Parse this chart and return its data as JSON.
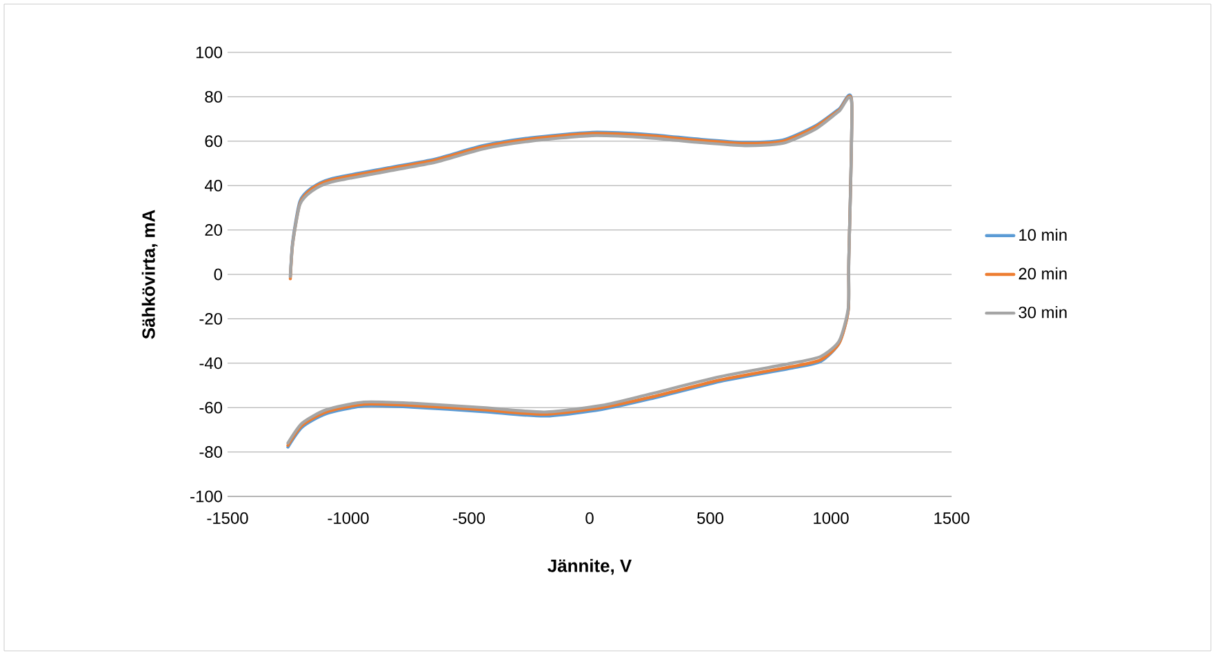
{
  "chart_data": {
    "type": "line",
    "xlabel": "Jännite, V",
    "ylabel": "Sähkövirta, mA",
    "x": [
      -1240,
      -1230,
      -1200,
      -1151,
      -1073,
      -836,
      -639,
      -442,
      -246,
      11,
      246,
      445,
      642,
      800,
      937,
      1034,
      1086,
      1074,
      1072,
      1034,
      957,
      839,
      543,
      246,
      51,
      -186,
      -442,
      -738,
      -935,
      -1092,
      -1191,
      -1250
    ],
    "series": [
      {
        "name": "10 min",
        "color": "#5b9bd5",
        "values": [
          -1,
          15,
          33,
          39,
          43,
          48,
          52,
          58,
          61.5,
          64,
          63,
          61,
          59.5,
          60.5,
          67,
          74.5,
          78,
          6,
          -16,
          -31,
          -39.2,
          -42.2,
          -48.2,
          -56.2,
          -60.8,
          -63.8,
          -61.8,
          -59.8,
          -59.3,
          -62.8,
          -68.8,
          -77.8
        ]
      },
      {
        "name": "20 min",
        "color": "#ed7d31",
        "values": [
          -2,
          14,
          32,
          38.5,
          42.5,
          47.5,
          51.5,
          57.5,
          61,
          63.5,
          62.5,
          60.5,
          59,
          60,
          66.5,
          74,
          77.5,
          6,
          -16,
          -31,
          -38.5,
          -41.5,
          -47.5,
          -55.5,
          -60,
          -63,
          -61,
          -59,
          -58.5,
          -62,
          -68,
          -77
        ]
      },
      {
        "name": "30 min",
        "color": "#a5a5a5",
        "values": [
          -1,
          14,
          31.5,
          37.5,
          41.5,
          46.5,
          50.5,
          56.5,
          60,
          62.5,
          61.5,
          59.5,
          58,
          59,
          65.5,
          73.5,
          77,
          6,
          -15,
          -30,
          -37,
          -40,
          -46,
          -54,
          -59,
          -62,
          -60,
          -58,
          -57.5,
          -61,
          -67,
          -76
        ]
      }
    ],
    "xlim": [
      -1500,
      1500
    ],
    "xticks": [
      -1500,
      -1000,
      -500,
      0,
      500,
      1000,
      1500
    ],
    "ylim": [
      -100,
      100
    ],
    "yticks": [
      -100,
      -80,
      -60,
      -40,
      -20,
      0,
      20,
      40,
      60,
      80,
      100
    ],
    "grid": "y",
    "legend": "right",
    "marker": "none",
    "line_style": "solid"
  }
}
